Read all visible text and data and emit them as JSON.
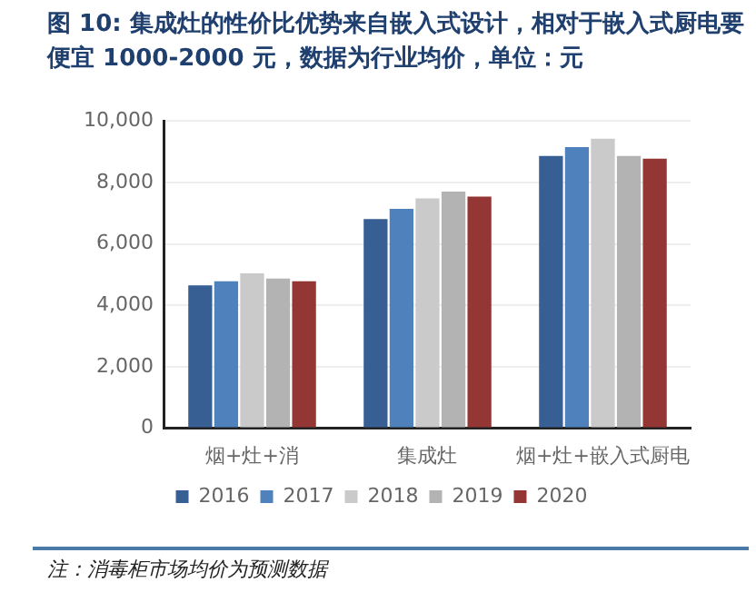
{
  "chart_data": {
    "type": "bar",
    "title": "图 10: 集成灶的性价比优势来自嵌入式设计，相对于嵌入式厨电要便宜 1000-2000 元，数据为行业均价，单位：元",
    "categories": [
      "烟+灶+消",
      "集成灶",
      "烟+灶+嵌入式厨电"
    ],
    "series": [
      {
        "name": "2016",
        "color": "#375f93",
        "values": [
          4650,
          6810,
          8860
        ]
      },
      {
        "name": "2017",
        "color": "#4f81bd",
        "values": [
          4780,
          7140,
          9150
        ]
      },
      {
        "name": "2018",
        "color": "#cacaca",
        "values": [
          5040,
          7480,
          9420
        ]
      },
      {
        "name": "2019",
        "color": "#b3b3b3",
        "values": [
          4870,
          7700,
          8860
        ]
      },
      {
        "name": "2020",
        "color": "#943634",
        "values": [
          4780,
          7540,
          8770
        ]
      }
    ],
    "ylim": [
      0,
      10000
    ],
    "yticks": [
      {
        "value": 0,
        "label": "0"
      },
      {
        "value": 2000,
        "label": "2,000"
      },
      {
        "value": 4000,
        "label": "4,000"
      },
      {
        "value": 6000,
        "label": "6,000"
      },
      {
        "value": 8000,
        "label": "8,000"
      },
      {
        "value": 10000,
        "label": "10,000"
      }
    ],
    "grid": "y",
    "legend": "bottom",
    "annotations": [
      "注：消毒柜市场均价为预测数据"
    ]
  }
}
